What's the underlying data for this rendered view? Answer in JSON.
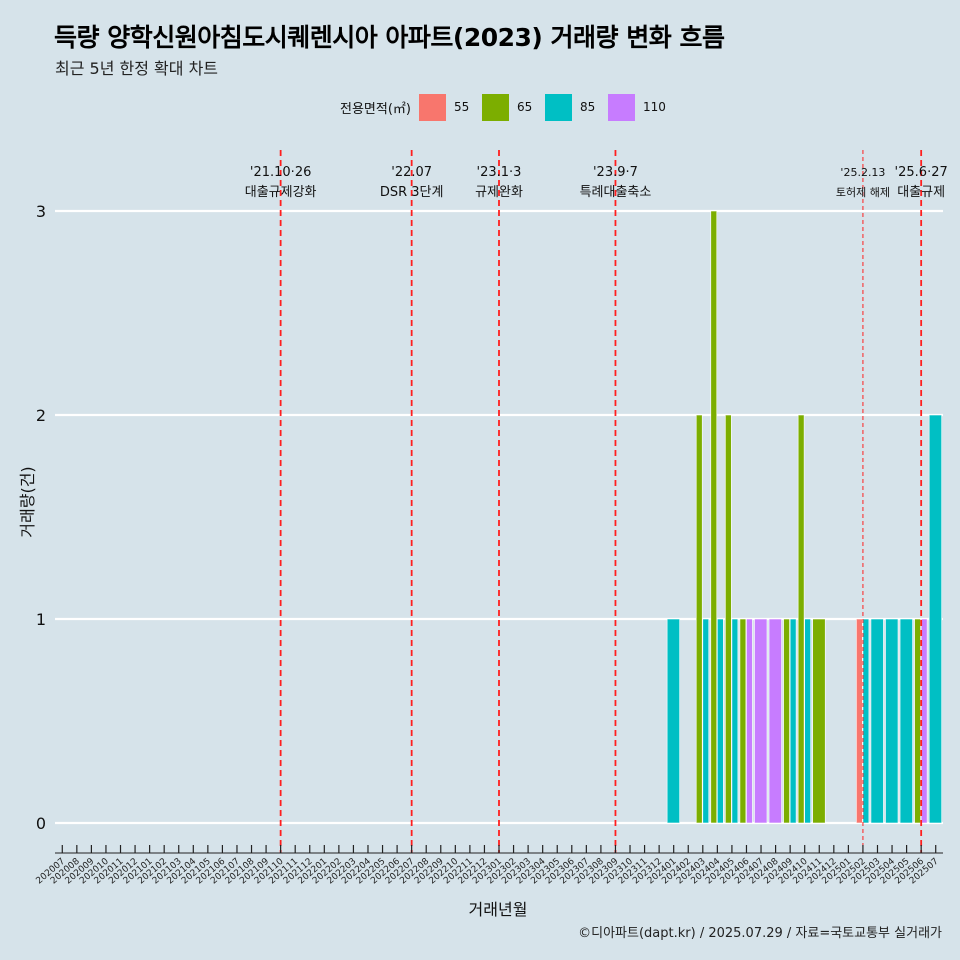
{
  "title": "득량 양학신원아침도시퀘렌시아 아파트(2023) 거래량 변화 흐름",
  "subtitle": "최근 5년 한정 확대 차트",
  "caption": "©디아파트(dapt.kr) / 2025.07.29 / 자료=국토교통부 실거래가",
  "legend": {
    "title": "전용면적(㎡)",
    "items": [
      {
        "label": "55",
        "color": "#F8766D"
      },
      {
        "label": "65",
        "color": "#7CAE00"
      },
      {
        "label": "85",
        "color": "#00BFC4"
      },
      {
        "label": "110",
        "color": "#C77CFF"
      }
    ]
  },
  "chart_data": {
    "type": "bar",
    "xlabel": "거래년월",
    "ylabel": "거래량(건)",
    "ylim": [
      0,
      3
    ],
    "yticks": [
      0,
      1,
      2,
      3
    ],
    "grid": true,
    "legend_position": "top",
    "x": [
      "202007",
      "202008",
      "202009",
      "202010",
      "202011",
      "202012",
      "202101",
      "202102",
      "202103",
      "202104",
      "202105",
      "202106",
      "202107",
      "202108",
      "202109",
      "202110",
      "202111",
      "202112",
      "202201",
      "202202",
      "202203",
      "202204",
      "202205",
      "202206",
      "202207",
      "202208",
      "202209",
      "202210",
      "202211",
      "202212",
      "202301",
      "202302",
      "202303",
      "202304",
      "202305",
      "202306",
      "202307",
      "202308",
      "202309",
      "202310",
      "202311",
      "202312",
      "202401",
      "202402",
      "202403",
      "202404",
      "202405",
      "202406",
      "202407",
      "202408",
      "202409",
      "202410",
      "202411",
      "202412",
      "202501",
      "202502",
      "202503",
      "202504",
      "202505",
      "202506",
      "202507"
    ],
    "series": [
      {
        "name": "55",
        "values": [
          0,
          0,
          0,
          0,
          0,
          0,
          0,
          0,
          0,
          0,
          0,
          0,
          0,
          0,
          0,
          0,
          0,
          0,
          0,
          0,
          0,
          0,
          0,
          0,
          0,
          0,
          0,
          0,
          0,
          0,
          0,
          0,
          0,
          0,
          0,
          0,
          0,
          0,
          0,
          0,
          0,
          0,
          0,
          0,
          0,
          0,
          0,
          0,
          0,
          0,
          0,
          0,
          0,
          0,
          0,
          1,
          0,
          0,
          0,
          0,
          0
        ]
      },
      {
        "name": "65",
        "values": [
          0,
          0,
          0,
          0,
          0,
          0,
          0,
          0,
          0,
          0,
          0,
          0,
          0,
          0,
          0,
          0,
          0,
          0,
          0,
          0,
          0,
          0,
          0,
          0,
          0,
          0,
          0,
          0,
          0,
          0,
          0,
          0,
          0,
          0,
          0,
          0,
          0,
          0,
          0,
          0,
          0,
          0,
          0,
          0,
          2,
          3,
          2,
          1,
          0,
          0,
          1,
          2,
          1,
          0,
          0,
          0,
          0,
          0,
          0,
          1,
          0
        ]
      },
      {
        "name": "85",
        "values": [
          0,
          0,
          0,
          0,
          0,
          0,
          0,
          0,
          0,
          0,
          0,
          0,
          0,
          0,
          0,
          0,
          0,
          0,
          0,
          0,
          0,
          0,
          0,
          0,
          0,
          0,
          0,
          0,
          0,
          0,
          0,
          0,
          0,
          0,
          0,
          0,
          0,
          0,
          0,
          0,
          0,
          0,
          1,
          0,
          1,
          1,
          1,
          0,
          0,
          0,
          1,
          1,
          0,
          0,
          0,
          1,
          1,
          1,
          1,
          0,
          2
        ]
      },
      {
        "name": "110",
        "values": [
          0,
          0,
          0,
          0,
          0,
          0,
          0,
          0,
          0,
          0,
          0,
          0,
          0,
          0,
          0,
          0,
          0,
          0,
          0,
          0,
          0,
          0,
          0,
          0,
          0,
          0,
          0,
          0,
          0,
          0,
          0,
          0,
          0,
          0,
          0,
          0,
          0,
          0,
          0,
          0,
          0,
          0,
          0,
          0,
          0,
          0,
          0,
          1,
          1,
          1,
          0,
          0,
          0,
          0,
          0,
          0,
          0,
          0,
          0,
          1,
          0
        ]
      }
    ],
    "events": [
      {
        "month": "202110",
        "date": "'21.10·26",
        "label": "대출규제강화",
        "style": "bold"
      },
      {
        "month": "202207",
        "date": "'22.07",
        "label": "DSR 3단계",
        "style": "bold"
      },
      {
        "month": "202301",
        "date": "'23.1·3",
        "label": "규제완화",
        "style": "bold"
      },
      {
        "month": "202309",
        "date": "'23.9·7",
        "label": "특례대출축소",
        "style": "bold"
      },
      {
        "month": "202502",
        "date": "'25.2.13",
        "label": "토허제 해제",
        "style": "thin"
      },
      {
        "month": "202506",
        "date": "'25.6·27",
        "label": "대출규제",
        "style": "bold"
      }
    ]
  }
}
